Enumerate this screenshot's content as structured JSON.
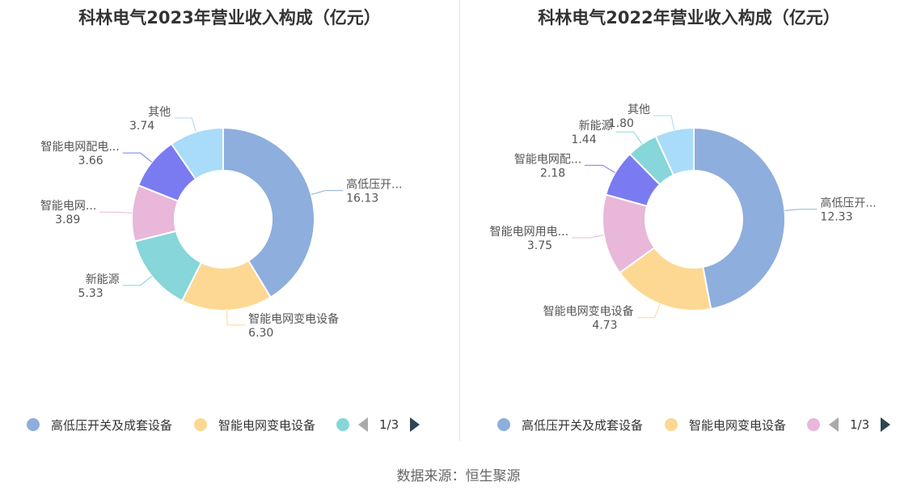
{
  "source": "数据来源：恒生聚源",
  "chart_data": [
    {
      "type": "pie",
      "title": "科林电气2023年营业收入构成（亿元）",
      "series": [
        {
          "name": "高低压开关及成套设备",
          "label": "高低压开...",
          "value": 16.13,
          "value_text": "16.13",
          "color": "#8eaedd"
        },
        {
          "name": "智能电网变电设备",
          "label": "智能电网变电设备",
          "value": 6.3,
          "value_text": "6.30",
          "color": "#fdd893"
        },
        {
          "name": "新能源",
          "label": "新能源",
          "value": 5.33,
          "value_text": "5.33",
          "color": "#86d6da"
        },
        {
          "name": "智能电网用电设备",
          "label": "智能电网...",
          "value": 3.89,
          "value_text": "3.89",
          "color": "#e8b7d9"
        },
        {
          "name": "智能电网配电设备",
          "label": "智能电网配电...",
          "value": 3.66,
          "value_text": "3.66",
          "color": "#7b7bf1"
        },
        {
          "name": "其他",
          "label": "其他",
          "value": 3.74,
          "value_text": "3.74",
          "color": "#a8dcf8"
        }
      ],
      "legend": {
        "placement": "bottom",
        "items": [
          {
            "name": "高低压开关及成套设备",
            "color": "#8eaedd"
          },
          {
            "name": "智能电网变电设备",
            "color": "#fdd893"
          },
          {
            "name": "",
            "color": "#86d6da"
          }
        ],
        "page": "1/3"
      }
    },
    {
      "type": "pie",
      "title": "科林电气2022年营业收入构成（亿元）",
      "series": [
        {
          "name": "高低压开关及成套设备",
          "label": "高低压开...",
          "value": 12.33,
          "value_text": "12.33",
          "color": "#8eaedd"
        },
        {
          "name": "智能电网变电设备",
          "label": "智能电网变电设备",
          "value": 4.73,
          "value_text": "4.73",
          "color": "#fdd893"
        },
        {
          "name": "智能电网用电设备",
          "label": "智能电网用电...",
          "value": 3.75,
          "value_text": "3.75",
          "color": "#e8b7d9"
        },
        {
          "name": "智能电网配电设备",
          "label": "智能电网配...",
          "value": 2.18,
          "value_text": "2.18",
          "color": "#7b7bf1"
        },
        {
          "name": "新能源",
          "label": "新能源",
          "value": 1.44,
          "value_text": "1.44",
          "color": "#86d6da"
        },
        {
          "name": "其他",
          "label": "其他",
          "value": 1.8,
          "value_text": "1.80",
          "color": "#a8dcf8"
        }
      ],
      "legend": {
        "placement": "bottom",
        "items": [
          {
            "name": "高低压开关及成套设备",
            "color": "#8eaedd"
          },
          {
            "name": "智能电网变电设备",
            "color": "#fdd893"
          },
          {
            "name": "",
            "color": "#e8b7d9"
          }
        ],
        "page": "1/3"
      }
    }
  ]
}
